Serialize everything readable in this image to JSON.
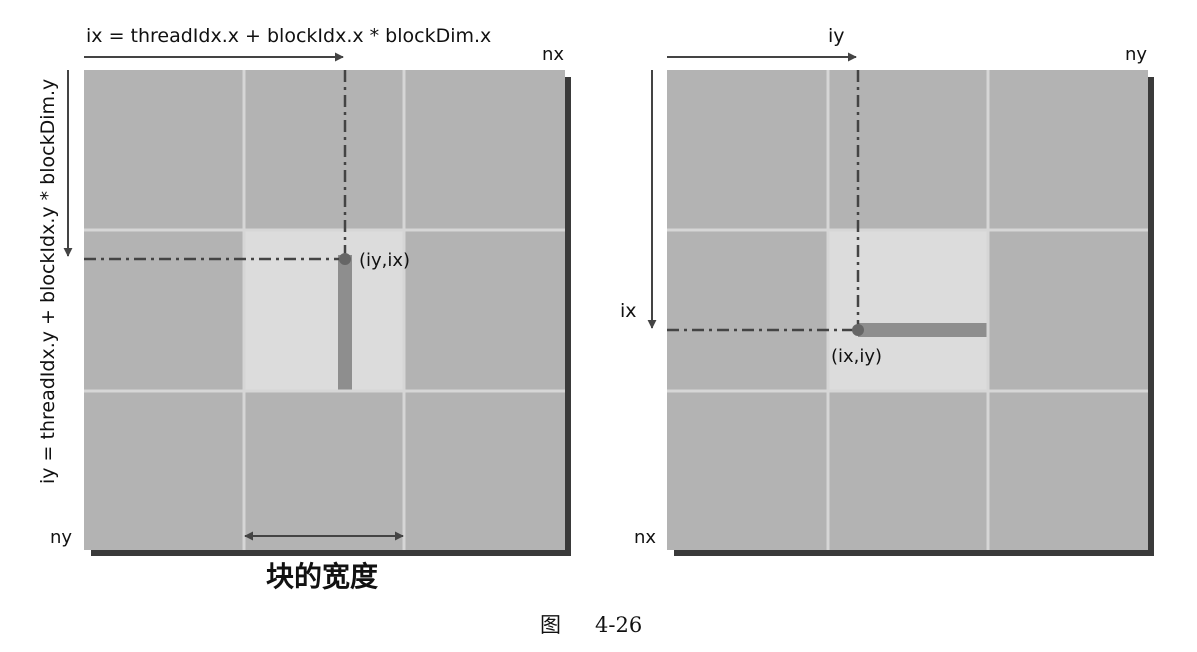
{
  "left_panel": {
    "top_formula": "ix = threadIdx.x + blockIdx.x * blockDim.x",
    "side_formula": "iy = threadIdx.y + blockIdx.y * blockDim.y",
    "corner_top_right": "nx",
    "corner_bottom_left": "ny",
    "point_label": "(iy,ix)",
    "width_label": "块的宽度"
  },
  "right_panel": {
    "top_label": "iy",
    "side_label": "ix",
    "corner_top_right": "ny",
    "corner_bottom_left": "nx",
    "point_label": "(ix,iy)"
  },
  "caption": {
    "prefix": "图",
    "number": "4-26"
  },
  "colors": {
    "block_fill": "#b3b3b3",
    "highlight_block_fill": "#dcdcdc",
    "grid_line": "#d6d6d6",
    "shadow": "#3a3a3a",
    "strip": "#8e8e8e",
    "arrow": "#444444",
    "point": "#666666"
  }
}
